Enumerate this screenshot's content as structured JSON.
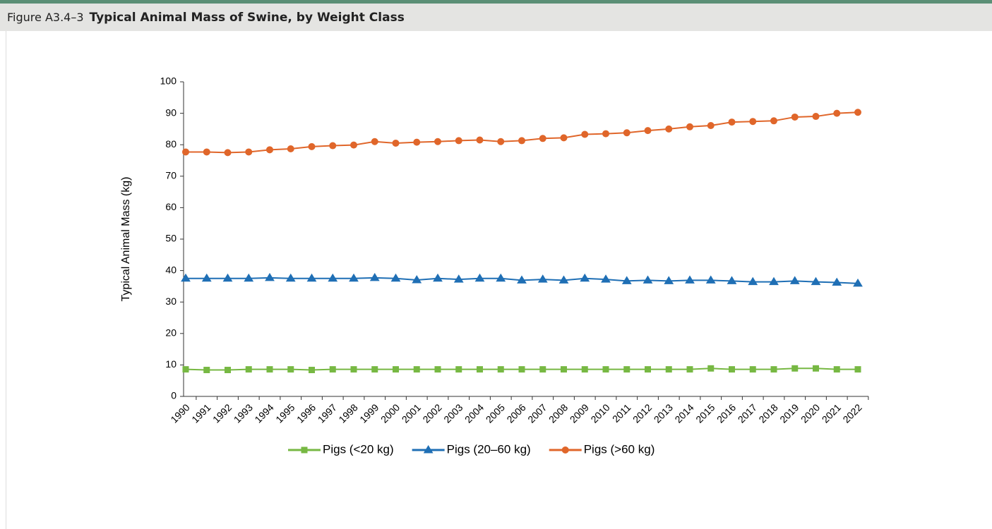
{
  "header": {
    "figure": "Figure A3.4–3",
    "title": "Typical Animal Mass of Swine, by Weight Class"
  },
  "chart_data": {
    "type": "line",
    "y_label": "Typical Animal Mass (kg)",
    "categories": [
      "1990",
      "1991",
      "1992",
      "1993",
      "1994",
      "1995",
      "1996",
      "1997",
      "1998",
      "1999",
      "2000",
      "2001",
      "2002",
      "2003",
      "2004",
      "2005",
      "2006",
      "2007",
      "2008",
      "2009",
      "2010",
      "2011",
      "2012",
      "2013",
      "2014",
      "2015",
      "2016",
      "2017",
      "2018",
      "2019",
      "2020",
      "2021",
      "2022"
    ],
    "ylim": [
      0,
      100
    ],
    "yticks": [
      0,
      10,
      20,
      30,
      40,
      50,
      60,
      70,
      80,
      90,
      100
    ],
    "legend": "bottom",
    "series": [
      {
        "name": "Pigs (<20 kg)",
        "color": "#77b843",
        "marker": "square",
        "values": [
          8.6,
          8.4,
          8.4,
          8.6,
          8.6,
          8.6,
          8.4,
          8.6,
          8.6,
          8.6,
          8.6,
          8.6,
          8.6,
          8.6,
          8.6,
          8.6,
          8.6,
          8.6,
          8.6,
          8.6,
          8.6,
          8.6,
          8.6,
          8.6,
          8.6,
          8.9,
          8.6,
          8.6,
          8.6,
          8.9,
          8.9,
          8.6,
          8.6
        ]
      },
      {
        "name": "Pigs (20–60 kg)",
        "color": "#1f6fb5",
        "marker": "triangle",
        "values": [
          37.5,
          37.5,
          37.5,
          37.5,
          37.7,
          37.5,
          37.5,
          37.5,
          37.5,
          37.7,
          37.5,
          37.0,
          37.5,
          37.2,
          37.5,
          37.5,
          36.9,
          37.2,
          36.9,
          37.5,
          37.2,
          36.7,
          36.9,
          36.7,
          36.9,
          36.9,
          36.7,
          36.4,
          36.4,
          36.7,
          36.4,
          36.2,
          35.9
        ]
      },
      {
        "name": "Pigs (>60 kg)",
        "color": "#e0662a",
        "marker": "circle",
        "values": [
          77.7,
          77.7,
          77.5,
          77.7,
          78.4,
          78.7,
          79.4,
          79.7,
          79.9,
          81.0,
          80.5,
          80.8,
          81.0,
          81.3,
          81.5,
          81.0,
          81.3,
          82.0,
          82.2,
          83.3,
          83.5,
          83.8,
          84.5,
          85.0,
          85.7,
          86.1,
          87.2,
          87.4,
          87.6,
          88.8,
          89.0,
          90.0,
          90.3
        ]
      }
    ]
  }
}
